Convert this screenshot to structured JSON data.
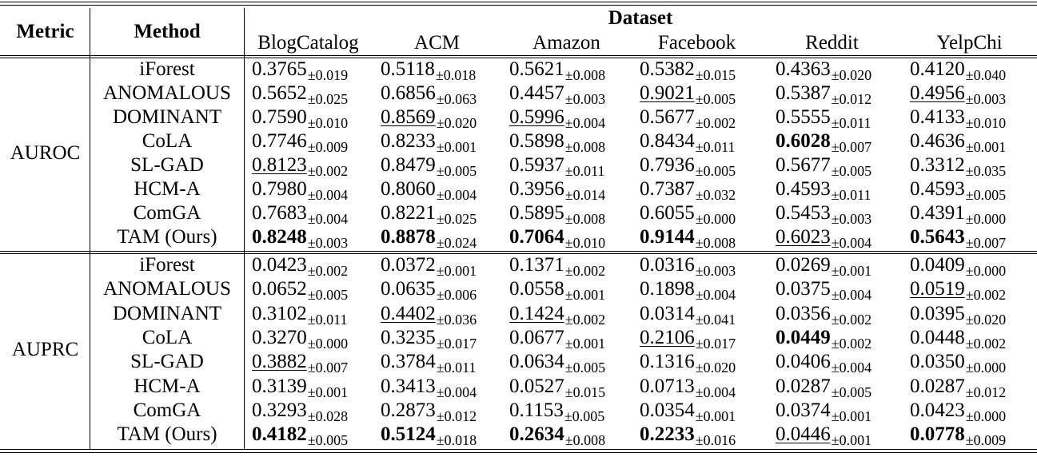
{
  "header": {
    "metric": "Metric",
    "method": "Method",
    "dataset": "Dataset",
    "datasets": [
      "BlogCatalog",
      "ACM",
      "Amazon",
      "Facebook",
      "Reddit",
      "YelpChi"
    ]
  },
  "groups": [
    {
      "metric": "AUROC",
      "rows": [
        {
          "method": "iForest",
          "cells": [
            {
              "mean": "0.3765",
              "std": "±0.019"
            },
            {
              "mean": "0.5118",
              "std": "±0.018"
            },
            {
              "mean": "0.5621",
              "std": "±0.008"
            },
            {
              "mean": "0.5382",
              "std": "±0.015"
            },
            {
              "mean": "0.4363",
              "std": "±0.020"
            },
            {
              "mean": "0.4120",
              "std": "±0.040"
            }
          ]
        },
        {
          "method": "ANOMALOUS",
          "cells": [
            {
              "mean": "0.5652",
              "std": "±0.025"
            },
            {
              "mean": "0.6856",
              "std": "±0.063"
            },
            {
              "mean": "0.4457",
              "std": "±0.003"
            },
            {
              "mean": "0.9021",
              "std": "±0.005",
              "style": "underline"
            },
            {
              "mean": "0.5387",
              "std": "±0.012"
            },
            {
              "mean": "0.4956",
              "std": "±0.003",
              "style": "underline"
            }
          ]
        },
        {
          "method": "DOMINANT",
          "cells": [
            {
              "mean": "0.7590",
              "std": "±0.010"
            },
            {
              "mean": "0.8569",
              "std": "±0.020",
              "style": "underline"
            },
            {
              "mean": "0.5996",
              "std": "±0.004",
              "style": "underline"
            },
            {
              "mean": "0.5677",
              "std": "±0.002"
            },
            {
              "mean": "0.5555",
              "std": "±0.011"
            },
            {
              "mean": "0.4133",
              "std": "±0.010"
            }
          ]
        },
        {
          "method": "CoLA",
          "cells": [
            {
              "mean": "0.7746",
              "std": "±0.009"
            },
            {
              "mean": "0.8233",
              "std": "±0.001"
            },
            {
              "mean": "0.5898",
              "std": "±0.008"
            },
            {
              "mean": "0.8434",
              "std": "±0.011"
            },
            {
              "mean": "0.6028",
              "std": "±0.007",
              "style": "bold"
            },
            {
              "mean": "0.4636",
              "std": "±0.001"
            }
          ]
        },
        {
          "method": "SL-GAD",
          "cells": [
            {
              "mean": "0.8123",
              "std": "±0.002",
              "style": "underline"
            },
            {
              "mean": "0.8479",
              "std": "±0.005"
            },
            {
              "mean": "0.5937",
              "std": "±0.011"
            },
            {
              "mean": "0.7936",
              "std": "±0.005"
            },
            {
              "mean": "0.5677",
              "std": "±0.005"
            },
            {
              "mean": "0.3312",
              "std": "±0.035"
            }
          ]
        },
        {
          "method": "HCM-A",
          "cells": [
            {
              "mean": "0.7980",
              "std": "±0.004"
            },
            {
              "mean": "0.8060",
              "std": "±0.004"
            },
            {
              "mean": "0.3956",
              "std": "±0.014"
            },
            {
              "mean": "0.7387",
              "std": "±0.032"
            },
            {
              "mean": "0.4593",
              "std": "±0.011"
            },
            {
              "mean": "0.4593",
              "std": "±0.005"
            }
          ]
        },
        {
          "method": "ComGA",
          "cells": [
            {
              "mean": "0.7683",
              "std": "±0.004"
            },
            {
              "mean": "0.8221",
              "std": "±0.025"
            },
            {
              "mean": "0.5895",
              "std": "±0.008"
            },
            {
              "mean": "0.6055",
              "std": "±0.000"
            },
            {
              "mean": "0.5453",
              "std": "±0.003"
            },
            {
              "mean": "0.4391",
              "std": "±0.000"
            }
          ]
        },
        {
          "method": "TAM (Ours)",
          "cells": [
            {
              "mean": "0.8248",
              "std": "±0.003",
              "style": "bold"
            },
            {
              "mean": "0.8878",
              "std": "±0.024",
              "style": "bold"
            },
            {
              "mean": "0.7064",
              "std": "±0.010",
              "style": "bold"
            },
            {
              "mean": "0.9144",
              "std": "±0.008",
              "style": "bold"
            },
            {
              "mean": "0.6023",
              "std": "±0.004",
              "style": "underline"
            },
            {
              "mean": "0.5643",
              "std": "±0.007",
              "style": "bold"
            }
          ]
        }
      ]
    },
    {
      "metric": "AUPRC",
      "rows": [
        {
          "method": "iForest",
          "cells": [
            {
              "mean": "0.0423",
              "std": "±0.002"
            },
            {
              "mean": "0.0372",
              "std": "±0.001"
            },
            {
              "mean": "0.1371",
              "std": "±0.002"
            },
            {
              "mean": "0.0316",
              "std": "±0.003"
            },
            {
              "mean": "0.0269",
              "std": "±0.001"
            },
            {
              "mean": "0.0409",
              "std": "±0.000"
            }
          ]
        },
        {
          "method": "ANOMALOUS",
          "cells": [
            {
              "mean": "0.0652",
              "std": "±0.005"
            },
            {
              "mean": "0.0635",
              "std": "±0.006"
            },
            {
              "mean": "0.0558",
              "std": "±0.001"
            },
            {
              "mean": "0.1898",
              "std": "±0.004"
            },
            {
              "mean": "0.0375",
              "std": "±0.004"
            },
            {
              "mean": "0.0519",
              "std": "±0.002",
              "style": "underline"
            }
          ]
        },
        {
          "method": "DOMINANT",
          "cells": [
            {
              "mean": "0.3102",
              "std": "±0.011"
            },
            {
              "mean": "0.4402",
              "std": "±0.036",
              "style": "underline"
            },
            {
              "mean": "0.1424",
              "std": "±0.002",
              "style": "underline"
            },
            {
              "mean": "0.0314",
              "std": "±0.041"
            },
            {
              "mean": "0.0356",
              "std": "±0.002"
            },
            {
              "mean": "0.0395",
              "std": "±0.020"
            }
          ]
        },
        {
          "method": "CoLA",
          "cells": [
            {
              "mean": "0.3270",
              "std": "±0.000"
            },
            {
              "mean": "0.3235",
              "std": "±0.017"
            },
            {
              "mean": "0.0677",
              "std": "±0.001"
            },
            {
              "mean": "0.2106",
              "std": "±0.017",
              "style": "underline"
            },
            {
              "mean": "0.0449",
              "std": "±0.002",
              "style": "bold"
            },
            {
              "mean": "0.0448",
              "std": "±0.002"
            }
          ]
        },
        {
          "method": "SL-GAD",
          "cells": [
            {
              "mean": "0.3882",
              "std": "±0.007",
              "style": "underline"
            },
            {
              "mean": "0.3784",
              "std": "±0.011"
            },
            {
              "mean": "0.0634",
              "std": "±0.005"
            },
            {
              "mean": "0.1316",
              "std": "±0.020"
            },
            {
              "mean": "0.0406",
              "std": "±0.004"
            },
            {
              "mean": "0.0350",
              "std": "±0.000"
            }
          ]
        },
        {
          "method": "HCM-A",
          "cells": [
            {
              "mean": "0.3139",
              "std": "±0.001"
            },
            {
              "mean": "0.3413",
              "std": "±0.004"
            },
            {
              "mean": "0.0527",
              "std": "±0.015"
            },
            {
              "mean": "0.0713",
              "std": "±0.004"
            },
            {
              "mean": "0.0287",
              "std": "±0.005"
            },
            {
              "mean": "0.0287",
              "std": "±0.012"
            }
          ]
        },
        {
          "method": "ComGA",
          "cells": [
            {
              "mean": "0.3293",
              "std": "±0.028"
            },
            {
              "mean": "0.2873",
              "std": "±0.012"
            },
            {
              "mean": "0.1153",
              "std": "±0.005"
            },
            {
              "mean": "0.0354",
              "std": "±0.001"
            },
            {
              "mean": "0.0374",
              "std": "±0.001"
            },
            {
              "mean": "0.0423",
              "std": "±0.000"
            }
          ]
        },
        {
          "method": "TAM (Ours)",
          "cells": [
            {
              "mean": "0.4182",
              "std": "±0.005",
              "style": "bold"
            },
            {
              "mean": "0.5124",
              "std": "±0.018",
              "style": "bold"
            },
            {
              "mean": "0.2634",
              "std": "±0.008",
              "style": "bold"
            },
            {
              "mean": "0.2233",
              "std": "±0.016",
              "style": "bold"
            },
            {
              "mean": "0.0446",
              "std": "±0.001",
              "style": "underline"
            },
            {
              "mean": "0.0778",
              "std": "±0.009",
              "style": "bold"
            }
          ]
        }
      ]
    }
  ]
}
